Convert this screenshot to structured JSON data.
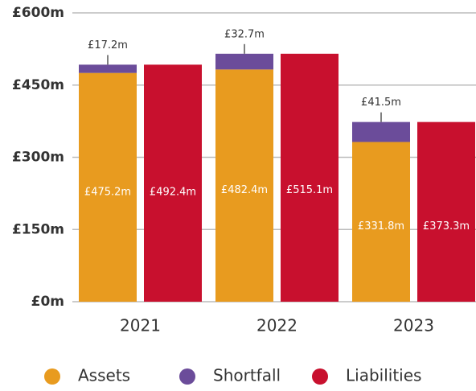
{
  "chart_data": {
    "type": "bar",
    "categories": [
      "2021",
      "2022",
      "2023"
    ],
    "series": [
      {
        "name": "Assets",
        "color": "#e89b1f",
        "stack": 0,
        "values": [
          475.2,
          482.4,
          331.8
        ],
        "value_labels": [
          "£475.2m",
          "£482.4m",
          "£331.8m"
        ]
      },
      {
        "name": "Shortfall",
        "color": "#6b4c9a",
        "stack": 0,
        "values": [
          17.2,
          32.7,
          41.5
        ],
        "value_labels": [
          "£17.2m",
          "£32.7m",
          "£41.5m"
        ]
      },
      {
        "name": "Liabilities",
        "color": "#c8102e",
        "stack": 1,
        "values": [
          492.4,
          515.1,
          373.3
        ],
        "value_labels": [
          "£492.4m",
          "£515.1m",
          "£373.3m"
        ]
      }
    ],
    "ylim": [
      0,
      600
    ],
    "yticks": [
      {
        "value": 0,
        "label": "£0m"
      },
      {
        "value": 150,
        "label": "£150m"
      },
      {
        "value": 300,
        "label": "£300m"
      },
      {
        "value": 450,
        "label": "£450m"
      },
      {
        "value": 600,
        "label": "£600m"
      }
    ],
    "grid": true,
    "legend": "bottom"
  }
}
